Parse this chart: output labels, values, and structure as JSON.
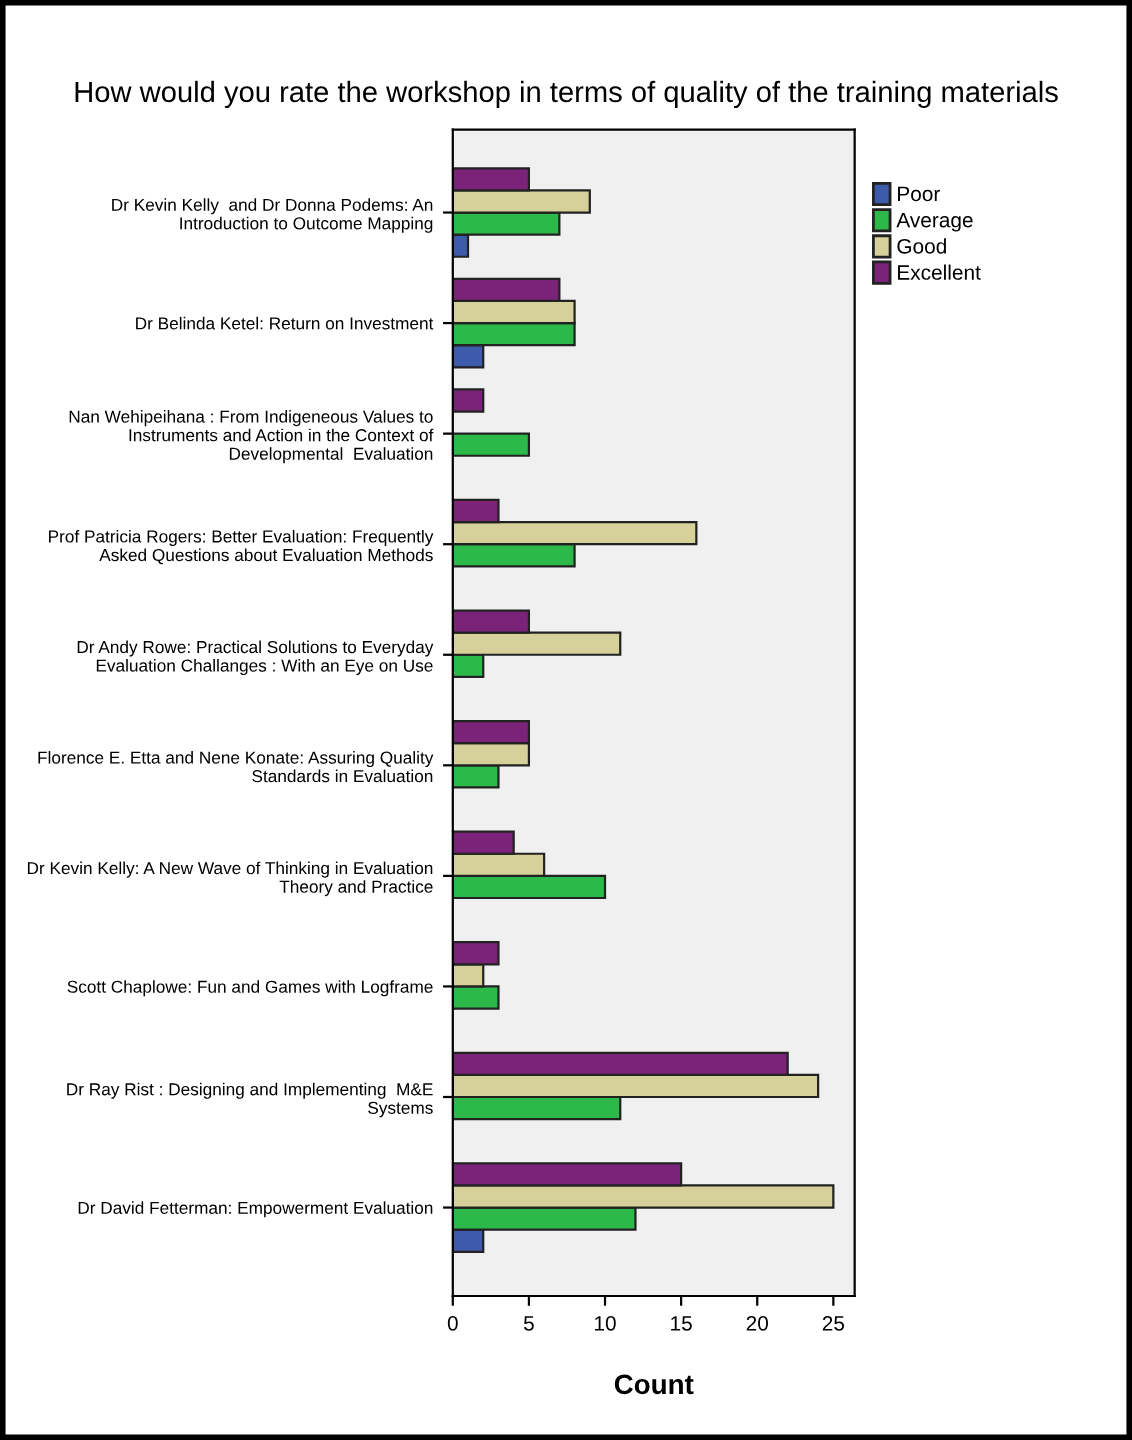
{
  "chart_data": {
    "type": "bar",
    "orientation": "horizontal",
    "title": "How would you rate the workshop in terms of quality of the training materials",
    "xlabel": "Count",
    "categories": [
      "Dr Kevin Kelly  and Dr Donna Podems: An\nIntroduction to Outcome Mapping",
      "Dr Belinda Ketel: Return on Investment",
      "Nan Wehipeihana : From Indigeneous Values to\nInstruments and Action in the Context of\nDevelopmental  Evaluation",
      "Prof Patricia Rogers: Better Evaluation: Frequently\nAsked Questions about Evaluation Methods",
      "Dr Andy Rowe: Practical Solutions to Everyday\nEvaluation Challanges : With an Eye on Use",
      "Florence E. Etta and Nene Konate: Assuring Quality\nStandards in Evaluation",
      "Dr Kevin Kelly: A New Wave of Thinking in Evaluation\nTheory and Practice",
      "Scott Chaplowe: Fun and Games with Logframe",
      "Dr Ray Rist : Designing and Implementing  M&E\nSystems",
      "Dr David Fetterman: Empowerment Evaluation"
    ],
    "series": [
      {
        "name": "Poor",
        "color": "#3d5aab",
        "values": [
          1,
          2,
          null,
          null,
          null,
          null,
          null,
          null,
          null,
          2
        ]
      },
      {
        "name": "Average",
        "color": "#2db84a",
        "values": [
          7,
          8,
          5,
          8,
          2,
          3,
          10,
          3,
          11,
          12
        ]
      },
      {
        "name": "Good",
        "color": "#d6d19a",
        "values": [
          9,
          8,
          null,
          16,
          11,
          5,
          6,
          2,
          24,
          25
        ]
      },
      {
        "name": "Excellent",
        "color": "#7b2378",
        "values": [
          5,
          7,
          2,
          3,
          5,
          5,
          4,
          3,
          22,
          15
        ]
      }
    ],
    "xlim": [
      0,
      26.4
    ],
    "xticks": [
      0,
      5,
      10,
      15,
      20,
      25
    ],
    "legend": "top right"
  }
}
